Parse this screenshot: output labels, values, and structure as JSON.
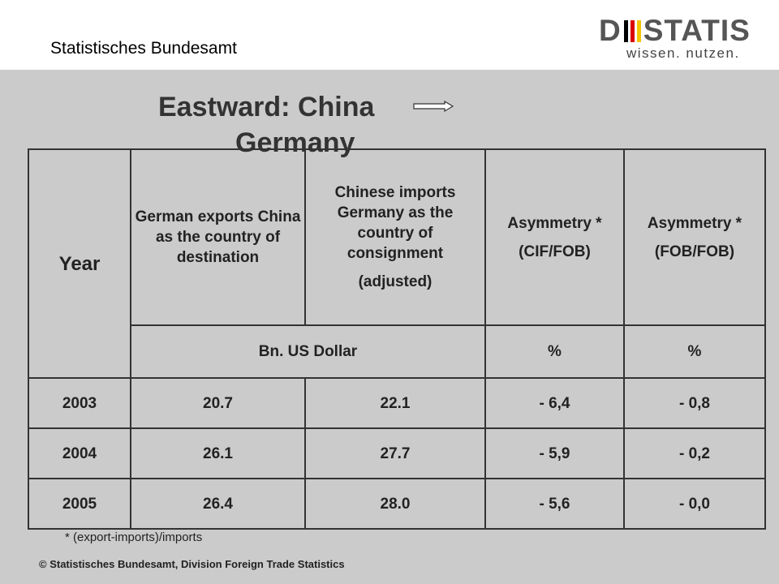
{
  "header": {
    "org": "Statistisches Bundesamt",
    "logo": {
      "left": "D",
      "right": "STATIS",
      "tagline": "wissen. nutzen."
    }
  },
  "title": {
    "line1": "Eastward: China",
    "line2": "Germany"
  },
  "table": {
    "columns": [
      [
        "Year"
      ],
      [
        "German exports China as the country of destination"
      ],
      [
        "Chinese imports Germany as the country of consignment",
        "(adjusted)"
      ],
      [
        "Asymmetry *",
        "(CIF/FOB)"
      ],
      [
        "Asymmetry *",
        "(FOB/FOB)"
      ]
    ],
    "units": [
      "Bn. US Dollar",
      "%",
      "%"
    ],
    "rows": [
      [
        "2003",
        "20.7",
        "22.1",
        "- 6,4",
        "- 0,8"
      ],
      [
        "2004",
        "26.1",
        "27.7",
        "- 5,9",
        "- 0,2"
      ],
      [
        "2005",
        "26.4",
        "28.0",
        "- 5,6",
        "- 0,0"
      ]
    ]
  },
  "footnote": "* (export-imports)/imports",
  "footer": "© Statistisches Bundesamt, Division Foreign Trade Statistics"
}
